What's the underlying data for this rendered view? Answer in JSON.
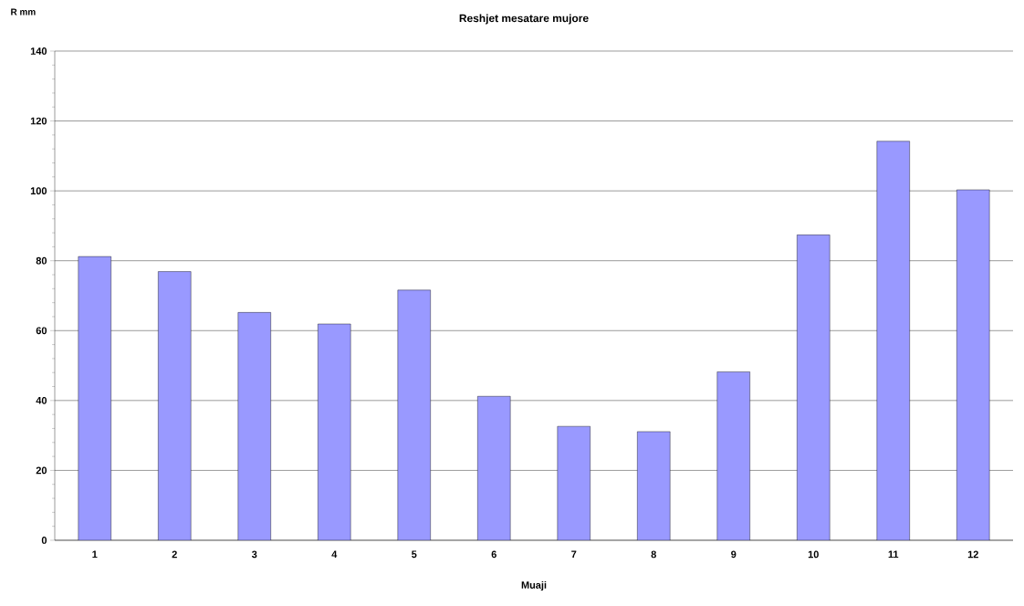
{
  "chart_data": {
    "type": "bar",
    "title": "Reshjet mesatare mujore",
    "xlabel": "Muaji",
    "ylabel": "R mm",
    "categories": [
      "1",
      "2",
      "3",
      "4",
      "5",
      "6",
      "7",
      "8",
      "9",
      "10",
      "11",
      "12"
    ],
    "values": [
      81.2,
      76.9,
      65.2,
      61.9,
      71.6,
      41.2,
      32.6,
      31.1,
      48.2,
      87.4,
      114.2,
      100.3
    ],
    "color": "#9999ff",
    "ylim": [
      0,
      140
    ],
    "yticks": [
      0,
      20,
      40,
      60,
      80,
      100,
      120,
      140
    ],
    "grid": "y"
  }
}
